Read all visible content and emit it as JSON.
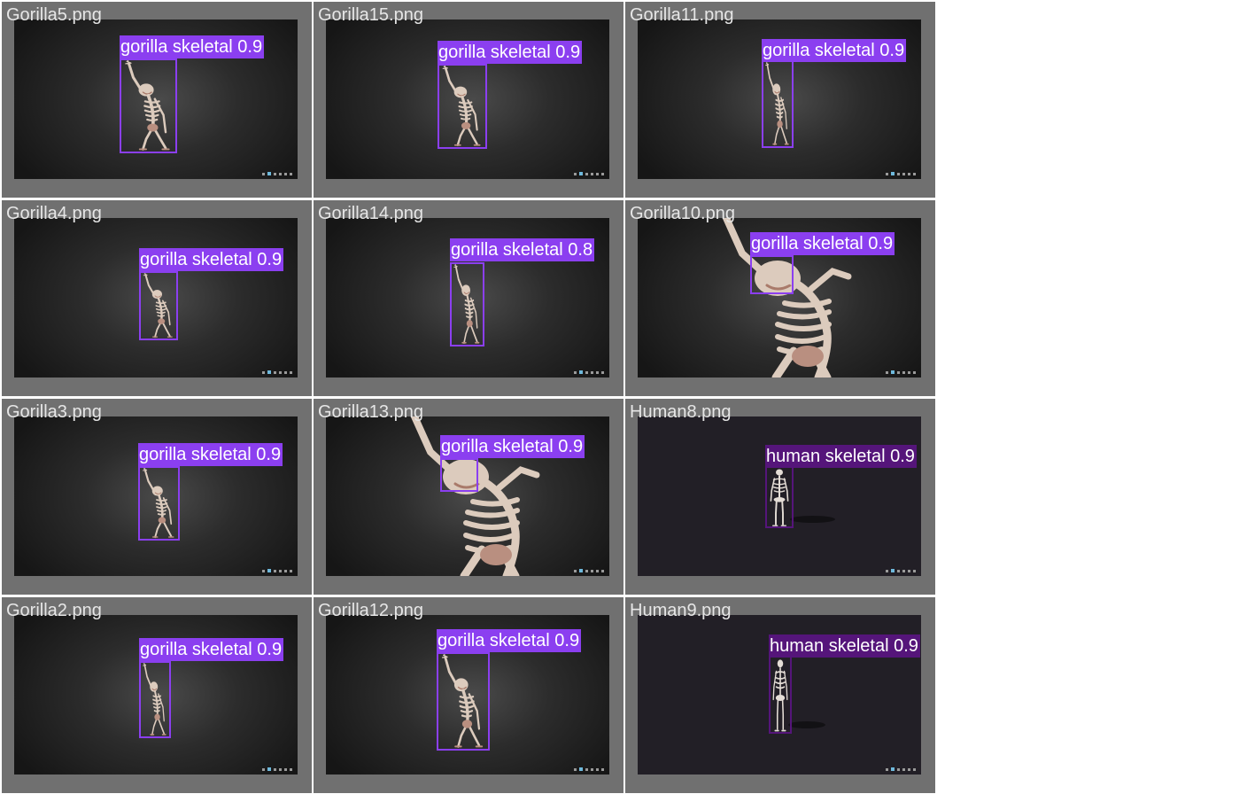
{
  "colors": {
    "gorilla_box": "#8b3ff0",
    "human_box": "#55157a",
    "cell_bg": "#707070"
  },
  "cells": [
    {
      "filename": "Gorilla5.png",
      "kind": "gorilla",
      "detection": {
        "label": "gorilla skeletal 0.9",
        "confidence": 0.9
      }
    },
    {
      "filename": "Gorilla15.png",
      "kind": "gorilla",
      "detection": {
        "label": "gorilla skeletal 0.9",
        "confidence": 0.9
      }
    },
    {
      "filename": "Gorilla11.png",
      "kind": "gorilla",
      "detection": {
        "label": "gorilla skeletal 0.9",
        "confidence": 0.9
      }
    },
    {
      "filename": "Gorilla4.png",
      "kind": "gorilla",
      "detection": {
        "label": "gorilla skeletal 0.9",
        "confidence": 0.9
      }
    },
    {
      "filename": "Gorilla14.png",
      "kind": "gorilla",
      "detection": {
        "label": "gorilla skeletal 0.8",
        "confidence": 0.8
      }
    },
    {
      "filename": "Gorilla10.png",
      "kind": "gorilla",
      "detection": {
        "label": "gorilla skeletal 0.9",
        "confidence": 0.9
      }
    },
    {
      "filename": "Gorilla3.png",
      "kind": "gorilla",
      "detection": {
        "label": "gorilla skeletal 0.9",
        "confidence": 0.9
      }
    },
    {
      "filename": "Gorilla13.png",
      "kind": "gorilla",
      "detection": {
        "label": "gorilla skeletal 0.9",
        "confidence": 0.9
      }
    },
    {
      "filename": "Human8.png",
      "kind": "human",
      "detection": {
        "label": "human skeletal 0.9",
        "confidence": 0.9
      }
    },
    {
      "filename": "Gorilla2.png",
      "kind": "gorilla",
      "detection": {
        "label": "gorilla skeletal 0.9",
        "confidence": 0.9
      }
    },
    {
      "filename": "Gorilla12.png",
      "kind": "gorilla",
      "detection": {
        "label": "gorilla skeletal 0.9",
        "confidence": 0.9
      }
    },
    {
      "filename": "Human9.png",
      "kind": "human",
      "detection": {
        "label": "human skeletal 0.9",
        "confidence": 0.9
      }
    }
  ]
}
